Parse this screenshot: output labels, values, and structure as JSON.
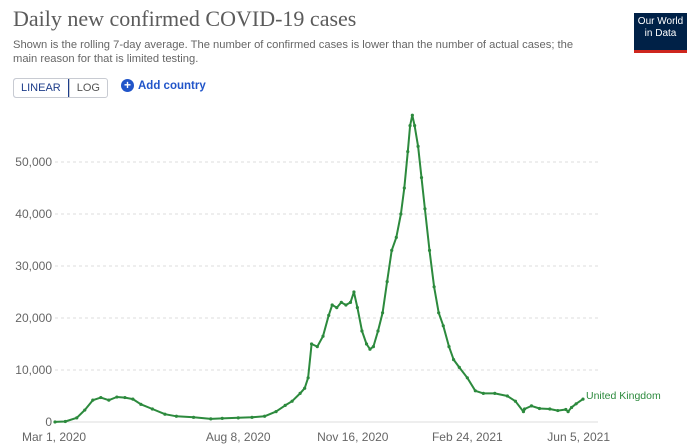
{
  "header": {
    "title": "Daily new confirmed COVID-19 cases",
    "subtitle": "Shown is the rolling 7-day average. The number of confirmed cases is lower than the number of actual cases; the main reason for that is limited testing.",
    "logo_line1": "Our World",
    "logo_line2": "in Data"
  },
  "controls": {
    "linear_label": "LINEAR",
    "log_label": "LOG",
    "add_country_label": "Add country",
    "add_icon": "plus-circle-icon"
  },
  "colors": {
    "series": "#2c8a3d",
    "grid": "#dcdcdc",
    "accent": "#2155c9"
  },
  "chart_data": {
    "type": "line",
    "title": "Daily new confirmed COVID-19 cases",
    "xlabel": "",
    "ylabel": "",
    "ylim": [
      0,
      60000
    ],
    "y_ticks": [
      0,
      10000,
      20000,
      30000,
      40000,
      50000
    ],
    "y_tick_labels": [
      "0",
      "10,000",
      "20,000",
      "30,000",
      "40,000",
      "50,000"
    ],
    "x_range": [
      "2020-03-01",
      "2021-06-05"
    ],
    "x_ticks": [
      "2020-03-01",
      "2020-08-08",
      "2020-11-16",
      "2021-02-24",
      "2021-06-05"
    ],
    "x_tick_labels": [
      "Mar 1, 2020",
      "Aug 8, 2020",
      "Nov 16, 2020",
      "Feb 24, 2021",
      "Jun 5, 2021"
    ],
    "grid": "horizontal dashed",
    "series": [
      {
        "name": "United Kingdom",
        "x": [
          "2020-03-01",
          "2020-03-10",
          "2020-03-20",
          "2020-03-27",
          "2020-04-03",
          "2020-04-10",
          "2020-04-17",
          "2020-04-24",
          "2020-05-01",
          "2020-05-08",
          "2020-05-15",
          "2020-05-25",
          "2020-06-05",
          "2020-06-15",
          "2020-06-30",
          "2020-07-15",
          "2020-07-25",
          "2020-08-08",
          "2020-08-20",
          "2020-08-31",
          "2020-09-10",
          "2020-09-18",
          "2020-09-24",
          "2020-10-01",
          "2020-10-05",
          "2020-10-08",
          "2020-10-11",
          "2020-10-16",
          "2020-10-21",
          "2020-10-26",
          "2020-10-29",
          "2020-11-02",
          "2020-11-06",
          "2020-11-10",
          "2020-11-14",
          "2020-11-17",
          "2020-11-20",
          "2020-11-24",
          "2020-11-28",
          "2020-12-01",
          "2020-12-04",
          "2020-12-08",
          "2020-12-12",
          "2020-12-16",
          "2020-12-20",
          "2020-12-24",
          "2020-12-28",
          "2020-12-31",
          "2021-01-03",
          "2021-01-05",
          "2021-01-07",
          "2021-01-09",
          "2021-01-12",
          "2021-01-15",
          "2021-01-18",
          "2021-01-22",
          "2021-01-26",
          "2021-01-30",
          "2021-02-03",
          "2021-02-08",
          "2021-02-12",
          "2021-02-17",
          "2021-02-24",
          "2021-03-03",
          "2021-03-10",
          "2021-03-20",
          "2021-03-31",
          "2021-04-07",
          "2021-04-14",
          "2021-04-15",
          "2021-04-21",
          "2021-04-28",
          "2021-05-07",
          "2021-05-14",
          "2021-05-21",
          "2021-05-23",
          "2021-05-26",
          "2021-05-30",
          "2021-06-05"
        ],
        "values": [
          10,
          100,
          800,
          2300,
          4200,
          4700,
          4200,
          4800,
          4700,
          4400,
          3400,
          2500,
          1500,
          1100,
          900,
          600,
          700,
          800,
          900,
          1100,
          2000,
          3200,
          4000,
          5500,
          6500,
          8500,
          15000,
          14500,
          16500,
          20500,
          22500,
          22000,
          23000,
          22500,
          23000,
          25000,
          22000,
          17500,
          15000,
          14000,
          14500,
          17500,
          21000,
          27000,
          33000,
          35500,
          40000,
          45000,
          52000,
          57000,
          59000,
          57000,
          53000,
          47000,
          41000,
          33000,
          26000,
          21000,
          18500,
          14500,
          12000,
          10500,
          8500,
          6000,
          5500,
          5500,
          5000,
          4000,
          2000,
          2500,
          3100,
          2600,
          2500,
          2200,
          2400,
          2000,
          2800,
          3500,
          4400
        ]
      }
    ]
  }
}
